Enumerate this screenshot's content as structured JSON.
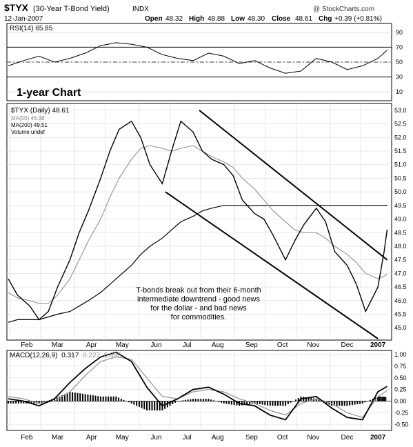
{
  "header": {
    "symbol": "$TYX",
    "name": "(30-Year T-Bond Yield)",
    "exchange": "INDX",
    "date": "12-Jan-2007",
    "copyright": "@ StockCharts.com",
    "open_label": "Open",
    "open": "48.32",
    "high_label": "High",
    "high": "48.88",
    "low_label": "Low",
    "low": "48.30",
    "close_label": "Close",
    "close": "48.61",
    "chg_label": "Chg",
    "chg": "+0.39 (+0.81%)"
  },
  "rsi_panel": {
    "label": "RSI(14) 65.85",
    "ticks": [
      "90",
      "70",
      "50",
      "30",
      "10"
    ],
    "chart_data": {
      "type": "line",
      "title": "RSI(14) 65.85",
      "ylim": [
        0,
        100
      ],
      "overbought": 70,
      "oversold": 30,
      "midline": 50,
      "x_months": [
        0,
        0.5,
        1,
        1.5,
        2,
        2.5,
        3,
        3.5,
        4,
        4.5,
        5,
        5.5,
        6,
        6.5,
        7,
        7.5,
        8,
        8.5,
        9,
        9.5,
        10,
        10.5,
        11,
        11.5,
        12,
        12.3
      ],
      "values": [
        45,
        52,
        58,
        50,
        55,
        62,
        72,
        76,
        74,
        70,
        60,
        55,
        52,
        62,
        58,
        48,
        52,
        42,
        35,
        38,
        55,
        50,
        40,
        45,
        55,
        66
      ]
    }
  },
  "chart_label": "1-year Chart",
  "price_panel": {
    "legend": {
      "main": "$TYX (Daily) 48.61",
      "ma50": "MA(50) 46.98",
      "ma200": "MA(200) 49.51",
      "volume": "Volume undef"
    },
    "ticks": [
      "53.0",
      "52.5",
      "52.0",
      "51.5",
      "51.0",
      "50.5",
      "50.0",
      "49.5",
      "49.0",
      "48.5",
      "48.0",
      "47.5",
      "47.0",
      "46.5",
      "46.0",
      "45.5",
      "45.0"
    ],
    "annotation": [
      "T-bonds break out from their 6-month",
      "intermediate downtrend - good news",
      "for the dollar - and bad news",
      "for commodities."
    ],
    "chart_data": {
      "type": "line",
      "title": "$TYX (Daily) 48.61",
      "ylim": [
        44.6,
        53.2
      ],
      "x_months": [
        0,
        0.3,
        0.7,
        1,
        1.3,
        1.6,
        2,
        2.3,
        2.6,
        3,
        3.3,
        3.6,
        4,
        4.3,
        4.6,
        5,
        5.3,
        5.6,
        6,
        6.3,
        6.6,
        7,
        7.3,
        7.6,
        8,
        8.3,
        8.6,
        9,
        9.3,
        9.6,
        10,
        10.3,
        10.6,
        11,
        11.3,
        11.6,
        12,
        12.2,
        12.3
      ],
      "series": [
        {
          "name": "$TYX (Daily) 48.61",
          "values": [
            46.8,
            46.2,
            45.8,
            45.3,
            45.6,
            46.5,
            47.5,
            48.5,
            49.3,
            50.5,
            51.5,
            52.3,
            52.6,
            52.0,
            51.0,
            50.3,
            51.5,
            52.6,
            52.2,
            51.5,
            51.2,
            51.0,
            50.6,
            49.7,
            49.2,
            49.0,
            48.4,
            47.5,
            48.2,
            48.8,
            49.4,
            48.9,
            47.8,
            47.3,
            46.6,
            45.6,
            46.5,
            47.8,
            48.61
          ]
        },
        {
          "name": "MA(50) 46.98",
          "values": [
            46.3,
            46.1,
            46.0,
            45.9,
            45.9,
            46.2,
            46.8,
            47.5,
            48.2,
            49.0,
            49.8,
            50.5,
            51.2,
            51.6,
            51.7,
            51.6,
            51.5,
            51.6,
            51.7,
            51.5,
            51.3,
            51.1,
            50.9,
            50.5,
            50.1,
            49.7,
            49.3,
            48.9,
            48.6,
            48.5,
            48.5,
            48.3,
            48.0,
            47.7,
            47.4,
            47.0,
            46.8,
            46.9,
            46.98
          ]
        },
        {
          "name": "MA(200) 49.51",
          "values": [
            45.2,
            45.3,
            45.3,
            45.3,
            45.4,
            45.5,
            45.6,
            45.8,
            46.0,
            46.3,
            46.6,
            46.9,
            47.3,
            47.7,
            48.0,
            48.3,
            48.6,
            48.9,
            49.1,
            49.3,
            49.4,
            49.5,
            49.5,
            49.5,
            49.5,
            49.5,
            49.5,
            49.5,
            49.5,
            49.5,
            49.5,
            49.5,
            49.5,
            49.5,
            49.5,
            49.5,
            49.5,
            49.5,
            49.51
          ]
        }
      ],
      "channel": {
        "upper": [
          [
            6.2,
            53.0
          ],
          [
            12.3,
            47.5
          ]
        ],
        "lower": [
          [
            5.1,
            50.0
          ],
          [
            12.0,
            44.6
          ]
        ]
      }
    }
  },
  "macd_panel": {
    "label": "MACD(12,26,9)",
    "value1": "0.317",
    "value2": "0.227, 0.090",
    "ticks": [
      "1.00",
      "0.75",
      "0.50",
      "0.25",
      "0.00",
      "-0.25",
      "-0.50"
    ],
    "chart_data": {
      "type": "line",
      "title": "MACD(12,26,9) 0.317, 0.227, 0.090",
      "ylim": [
        -0.6,
        1.0
      ],
      "x_months": [
        0,
        0.5,
        1,
        1.5,
        2,
        2.5,
        3,
        3.5,
        4,
        4.5,
        5,
        5.5,
        6,
        6.5,
        7,
        7.5,
        8,
        8.5,
        9,
        9.5,
        10,
        10.5,
        11,
        11.5,
        12,
        12.3
      ],
      "series": [
        {
          "name": "MACD",
          "values": [
            0.05,
            0.0,
            -0.1,
            0.05,
            0.4,
            0.7,
            0.95,
            1.05,
            0.85,
            0.3,
            -0.1,
            0.05,
            0.25,
            0.3,
            0.15,
            -0.05,
            -0.1,
            -0.3,
            -0.4,
            0.05,
            0.1,
            -0.15,
            -0.35,
            -0.4,
            0.2,
            0.317
          ]
        },
        {
          "name": "Signal",
          "values": [
            0.1,
            0.05,
            -0.05,
            0.0,
            0.2,
            0.55,
            0.85,
            0.95,
            0.9,
            0.5,
            0.1,
            0.05,
            0.2,
            0.25,
            0.2,
            0.05,
            -0.05,
            -0.2,
            -0.3,
            -0.05,
            0.05,
            -0.05,
            -0.25,
            -0.35,
            0.1,
            0.227
          ]
        }
      ]
    }
  },
  "x_axis": {
    "months": [
      "Feb",
      "Mar",
      "Apr",
      "May",
      "Jun",
      "Jul",
      "Aug",
      "Sep",
      "Oct",
      "Nov",
      "Dec",
      "2007"
    ]
  }
}
